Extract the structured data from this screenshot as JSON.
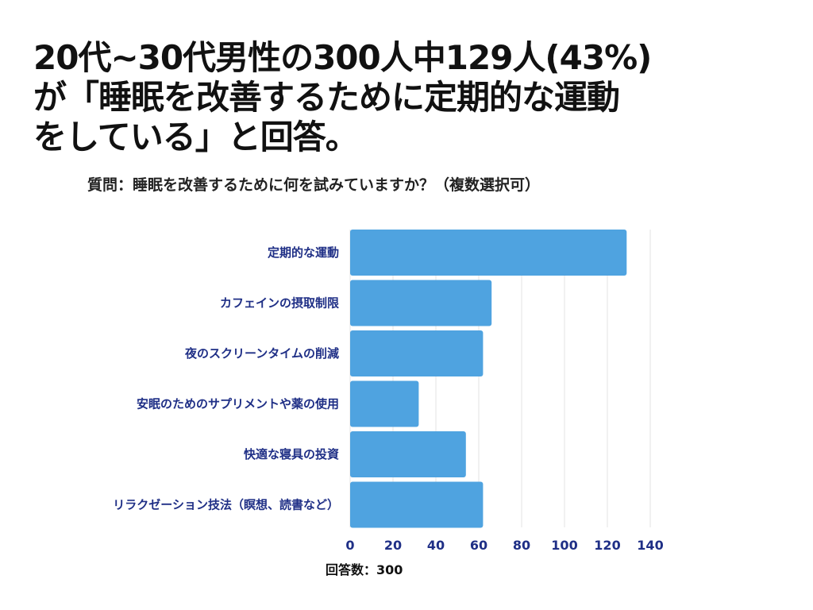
{
  "headline": {
    "line1": "20代~30代男性の300人中129人(43%)",
    "line2": "が「睡眠を改善するために定期的な運動",
    "line3": "をしている」と回答。"
  },
  "question": "質問：睡眠を改善するために何を試みていますか？（複数選択可）",
  "colors": {
    "bar": "#4fa3e0",
    "label": "#1f2f86",
    "grid": "#e3e3e3"
  },
  "chart_data": {
    "type": "bar",
    "orientation": "horizontal",
    "categories": [
      "定期的な運動",
      "カフェインの摂取制限",
      "夜のスクリーンタイムの削減",
      "安眠のためのサプリメントや薬の使用",
      "快適な寝具の投資",
      "リラクゼーション技法（瞑想、読書など）"
    ],
    "values": [
      129,
      66,
      62,
      32,
      54,
      62
    ],
    "xlim": [
      0,
      140
    ],
    "xticks": [
      0,
      20,
      40,
      60,
      80,
      100,
      120,
      140
    ],
    "xlabel": "回答数：300",
    "grid": true
  }
}
